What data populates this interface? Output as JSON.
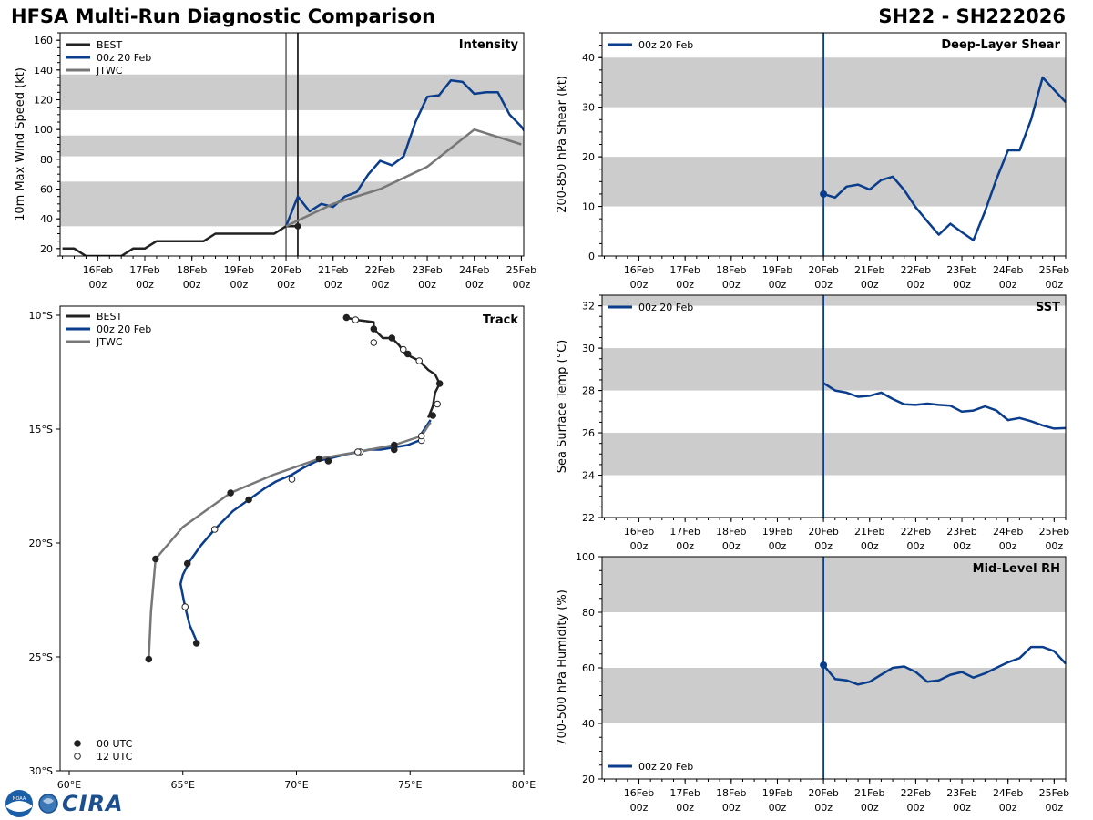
{
  "header": {
    "title": "HFSA Multi-Run Diagnostic Comparison",
    "storm_id": "SH22 - SH222026"
  },
  "logo": {
    "text": "CIRA",
    "noaa_text": "NOAA"
  },
  "colors": {
    "best": "#222222",
    "run": "#0a3d8c",
    "jtwc": "#777777",
    "band": "#cccccc"
  },
  "time_axis": {
    "day_labels": [
      "16Feb",
      "17Feb",
      "18Feb",
      "19Feb",
      "20Feb",
      "21Feb",
      "22Feb",
      "23Feb",
      "24Feb",
      "25Feb"
    ],
    "hour_label": "00z"
  },
  "chart_data": [
    {
      "id": "intensity",
      "type": "line",
      "title": "Intensity",
      "ylabel": "10m Max Wind Speed (kt)",
      "ylim": [
        15,
        165
      ],
      "yticks": [
        20,
        40,
        60,
        80,
        100,
        120,
        140,
        160
      ],
      "xlim_days": [
        -4.8,
        5.05
      ],
      "bands": [
        [
          35,
          65
        ],
        [
          82,
          96
        ],
        [
          113,
          137
        ]
      ],
      "vlines": [
        {
          "day": 0.0,
          "color": "#777777"
        },
        {
          "day": 0.25,
          "color": "#222222"
        }
      ],
      "legend": [
        "BEST",
        "00z 20 Feb",
        "JTWC"
      ],
      "series": [
        {
          "name": "BEST",
          "x": [
            -4.75,
            -4.5,
            -4.25,
            -4.0,
            -3.75,
            -3.5,
            -3.25,
            -3.0,
            -2.75,
            -2.5,
            -2.25,
            -2.0,
            -1.75,
            -1.5,
            -1.25,
            -1.0,
            -0.75,
            -0.5,
            -0.25,
            0.0,
            0.25
          ],
          "y": [
            20,
            20,
            15,
            15,
            15,
            15,
            20,
            20,
            25,
            25,
            25,
            25,
            25,
            30,
            30,
            30,
            30,
            30,
            30,
            35,
            35
          ],
          "endpoint": true
        },
        {
          "name": "00z 20 Feb",
          "x": [
            0.0,
            0.25,
            0.5,
            0.75,
            1.0,
            1.25,
            1.5,
            1.75,
            2.0,
            2.25,
            2.5,
            2.75,
            3.0,
            3.25,
            3.5,
            3.75,
            4.0,
            4.25,
            4.5,
            4.75,
            5.0,
            5.25
          ],
          "y": [
            35,
            55,
            45,
            50,
            48,
            55,
            58,
            70,
            79,
            76,
            82,
            105,
            122,
            123,
            133,
            132,
            124,
            125,
            125,
            110,
            102,
            90
          ]
        },
        {
          "name": "JTWC",
          "x": [
            0.0,
            1.0,
            2.0,
            3.0,
            4.0,
            5.0
          ],
          "y": [
            35,
            50,
            60,
            75,
            100,
            90
          ]
        }
      ]
    },
    {
      "id": "shear",
      "type": "line",
      "title": "Deep-Layer Shear",
      "ylabel": "200-850 hPa Shear (kt)",
      "ylim": [
        0,
        45
      ],
      "yticks": [
        0,
        10,
        20,
        30,
        40
      ],
      "xlim_days": [
        -4.8,
        5.25
      ],
      "bands": [
        [
          10,
          20
        ],
        [
          30,
          40
        ]
      ],
      "vlines": [
        {
          "day": 0.0,
          "color": "#0a3d8c"
        }
      ],
      "legend": [
        "00z 20 Feb"
      ],
      "series": [
        {
          "name": "00z 20 Feb",
          "x": [
            0,
            0.25,
            0.5,
            0.75,
            1.0,
            1.25,
            1.5,
            1.75,
            2.0,
            2.25,
            2.5,
            2.75,
            3.0,
            3.25,
            3.5,
            3.75,
            4.0,
            4.25,
            4.5,
            4.75,
            5.0,
            5.25
          ],
          "y": [
            12.5,
            11.8,
            14.0,
            14.4,
            13.4,
            15.3,
            16.0,
            13.3,
            9.8,
            7.0,
            4.3,
            6.5,
            4.8,
            3.2,
            9.0,
            15.5,
            21.3,
            21.3,
            27.5,
            36.0,
            33.5,
            31.0
          ],
          "startpoint": true
        }
      ]
    },
    {
      "id": "sst",
      "type": "line",
      "title": "SST",
      "ylabel": "Sea Surface Temp (°C)",
      "ylim": [
        22,
        32.5
      ],
      "yticks": [
        22,
        24,
        26,
        28,
        30,
        32
      ],
      "xlim_days": [
        -4.8,
        5.25
      ],
      "bands": [
        [
          24,
          26
        ],
        [
          28,
          30
        ],
        [
          32,
          34
        ]
      ],
      "vlines": [
        {
          "day": 0.0,
          "color": "#0a3d8c"
        }
      ],
      "legend": [
        "00z 20 Feb"
      ],
      "series": [
        {
          "name": "00z 20 Feb",
          "x": [
            0,
            0.25,
            0.5,
            0.75,
            1.0,
            1.25,
            1.5,
            1.75,
            2.0,
            2.25,
            2.5,
            2.75,
            3.0,
            3.25,
            3.5,
            3.75,
            4.0,
            4.25,
            4.5,
            4.75,
            5.0,
            5.25
          ],
          "y": [
            28.35,
            28.0,
            27.9,
            27.7,
            27.75,
            27.9,
            27.6,
            27.35,
            27.32,
            27.38,
            27.32,
            27.28,
            27.0,
            27.05,
            27.25,
            27.05,
            26.6,
            26.7,
            26.55,
            26.35,
            26.2,
            26.22
          ]
        }
      ]
    },
    {
      "id": "rh",
      "type": "line",
      "title": "Mid-Level RH",
      "ylabel": "700-500 hPa Humidity (%)",
      "ylim": [
        20,
        100
      ],
      "yticks": [
        20,
        40,
        60,
        80,
        100
      ],
      "xlim_days": [
        -4.8,
        5.25
      ],
      "bands": [
        [
          40,
          60
        ],
        [
          80,
          100
        ]
      ],
      "vlines": [
        {
          "day": 0.0,
          "color": "#0a3d8c"
        }
      ],
      "legend": [
        "00z 20 Feb"
      ],
      "series": [
        {
          "name": "00z 20 Feb",
          "x": [
            0,
            0.25,
            0.5,
            0.75,
            1.0,
            1.25,
            1.5,
            1.75,
            2.0,
            2.25,
            2.5,
            2.75,
            3.0,
            3.25,
            3.5,
            3.75,
            4.0,
            4.25,
            4.5,
            4.75,
            5.0,
            5.25
          ],
          "y": [
            61,
            56,
            55.5,
            54,
            55,
            57.5,
            60,
            60.5,
            58.5,
            55,
            55.5,
            57.5,
            58.5,
            56.5,
            58,
            60,
            62,
            63.5,
            67.5,
            67.5,
            66,
            61.5
          ],
          "startpoint": true
        }
      ]
    },
    {
      "id": "track",
      "type": "scatter",
      "title": "Track",
      "xlim": [
        59.6,
        80.0
      ],
      "ylim": [
        -30.0,
        -9.6
      ],
      "xticks": [
        60,
        65,
        70,
        75,
        80
      ],
      "xtick_labels": [
        "60°E",
        "65°E",
        "70°E",
        "75°E",
        "80°E"
      ],
      "yticks": [
        -10,
        -15,
        -20,
        -25,
        -30
      ],
      "ytick_labels": [
        "10°S",
        "15°S",
        "20°S",
        "25°S",
        "30°S"
      ],
      "legend": [
        "BEST",
        "00z 20 Feb",
        "JTWC"
      ],
      "marker_legend": [
        "00 UTC",
        "12 UTC"
      ],
      "series": [
        {
          "name": "BEST",
          "lon": [
            72.2,
            72.6,
            73.4,
            73.4,
            73.8,
            74.2,
            74.5,
            74.8,
            75.0,
            75.4,
            75.8,
            76.1,
            76.3,
            76.1,
            76.0,
            75.8
          ],
          "lat": [
            -10.1,
            -10.2,
            -10.3,
            -10.6,
            -11.0,
            -11.0,
            -11.3,
            -11.7,
            -11.8,
            -12.0,
            -12.4,
            -12.6,
            -13.0,
            -13.4,
            -14.0,
            -14.5
          ],
          "markers": [
            [
              72.2,
              -10.1,
              "00"
            ],
            [
              72.6,
              -10.2,
              "12"
            ],
            [
              73.4,
              -10.6,
              "00"
            ],
            [
              73.4,
              -11.2,
              "12"
            ],
            [
              74.2,
              -11.0,
              "00"
            ],
            [
              74.7,
              -11.5,
              "12"
            ],
            [
              74.9,
              -11.7,
              "00"
            ],
            [
              75.4,
              -12.0,
              "12"
            ],
            [
              76.3,
              -13.0,
              "00"
            ],
            [
              76.2,
              -13.9,
              "12"
            ],
            [
              76.0,
              -14.4,
              "00"
            ]
          ]
        },
        {
          "name": "00z 20 Feb",
          "lon": [
            75.9,
            75.7,
            75.5,
            75.4,
            74.9,
            74.3,
            73.7,
            73.2,
            72.8,
            72.2,
            71.4,
            70.9,
            70.3,
            69.8,
            69.1,
            68.6,
            67.9,
            67.2,
            66.4,
            65.8,
            65.3,
            65.0,
            64.9,
            65.1,
            65.3,
            65.6
          ],
          "lat": [
            -14.6,
            -14.9,
            -15.2,
            -15.5,
            -15.7,
            -15.8,
            -15.9,
            -15.9,
            -16.0,
            -16.1,
            -16.3,
            -16.4,
            -16.7,
            -17.0,
            -17.3,
            -17.6,
            -18.1,
            -18.6,
            -19.4,
            -20.1,
            -20.8,
            -21.4,
            -21.8,
            -22.8,
            -23.6,
            -24.3
          ],
          "markers": [
            [
              75.5,
              -15.5,
              "12"
            ],
            [
              74.3,
              -15.9,
              "00"
            ],
            [
              72.8,
              -16.0,
              "12"
            ],
            [
              71.4,
              -16.4,
              "00"
            ],
            [
              69.8,
              -17.2,
              "12"
            ],
            [
              67.9,
              -18.1,
              "00"
            ],
            [
              66.4,
              -19.4,
              "12"
            ],
            [
              65.2,
              -20.9,
              "00"
            ],
            [
              65.1,
              -22.8,
              "12"
            ],
            [
              65.6,
              -24.4,
              "00"
            ]
          ]
        },
        {
          "name": "JTWC",
          "lon": [
            75.9,
            75.5,
            74.3,
            72.7,
            71.0,
            69.0,
            67.1,
            65.0,
            63.8,
            63.6,
            63.5
          ],
          "lat": [
            -14.7,
            -15.3,
            -15.7,
            -16.0,
            -16.3,
            -17.0,
            -17.8,
            -19.3,
            -20.7,
            -23.0,
            -25.1
          ],
          "markers": [
            [
              75.5,
              -15.3,
              "12"
            ],
            [
              74.3,
              -15.7,
              "00"
            ],
            [
              72.7,
              -16.0,
              "12"
            ],
            [
              71.0,
              -16.3,
              "00"
            ],
            [
              67.1,
              -17.8,
              "00"
            ],
            [
              63.8,
              -20.7,
              "00"
            ],
            [
              63.5,
              -25.1,
              "00"
            ]
          ]
        }
      ]
    }
  ]
}
